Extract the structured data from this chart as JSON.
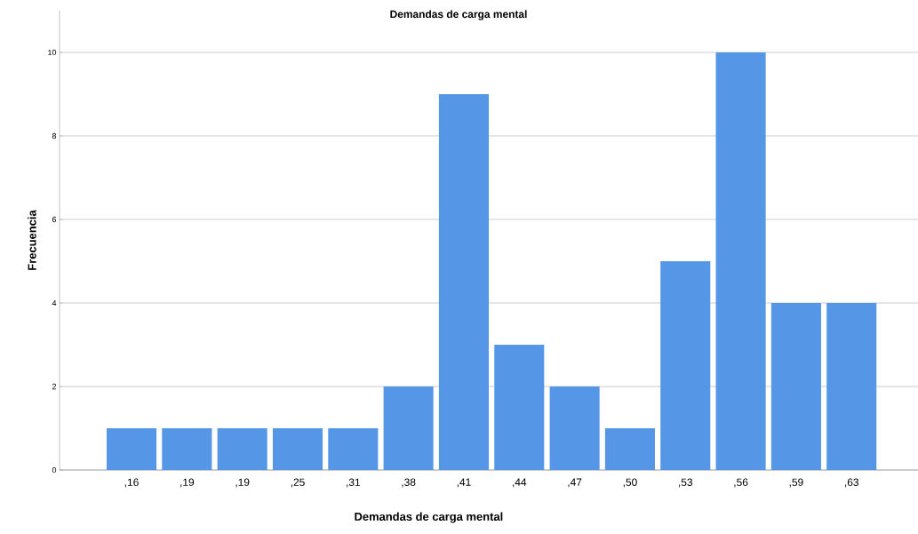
{
  "chart_data": {
    "type": "bar",
    "title": "Demandas de carga mental",
    "xlabel": "Demandas de carga mental",
    "ylabel": "Frecuencia",
    "categories": [
      ",16",
      ",19",
      ",19",
      ",25",
      ",31",
      ",38",
      ",41",
      ",44",
      ",47",
      ",50",
      ",53",
      ",56",
      ",59",
      ",63"
    ],
    "values": [
      1,
      1,
      1,
      1,
      1,
      2,
      9,
      3,
      2,
      1,
      5,
      10,
      4,
      4
    ],
    "color": "#5596e6",
    "ylim": [
      0,
      11
    ],
    "yticks": [
      0,
      2,
      4,
      6,
      8,
      10
    ],
    "grid": "y"
  }
}
